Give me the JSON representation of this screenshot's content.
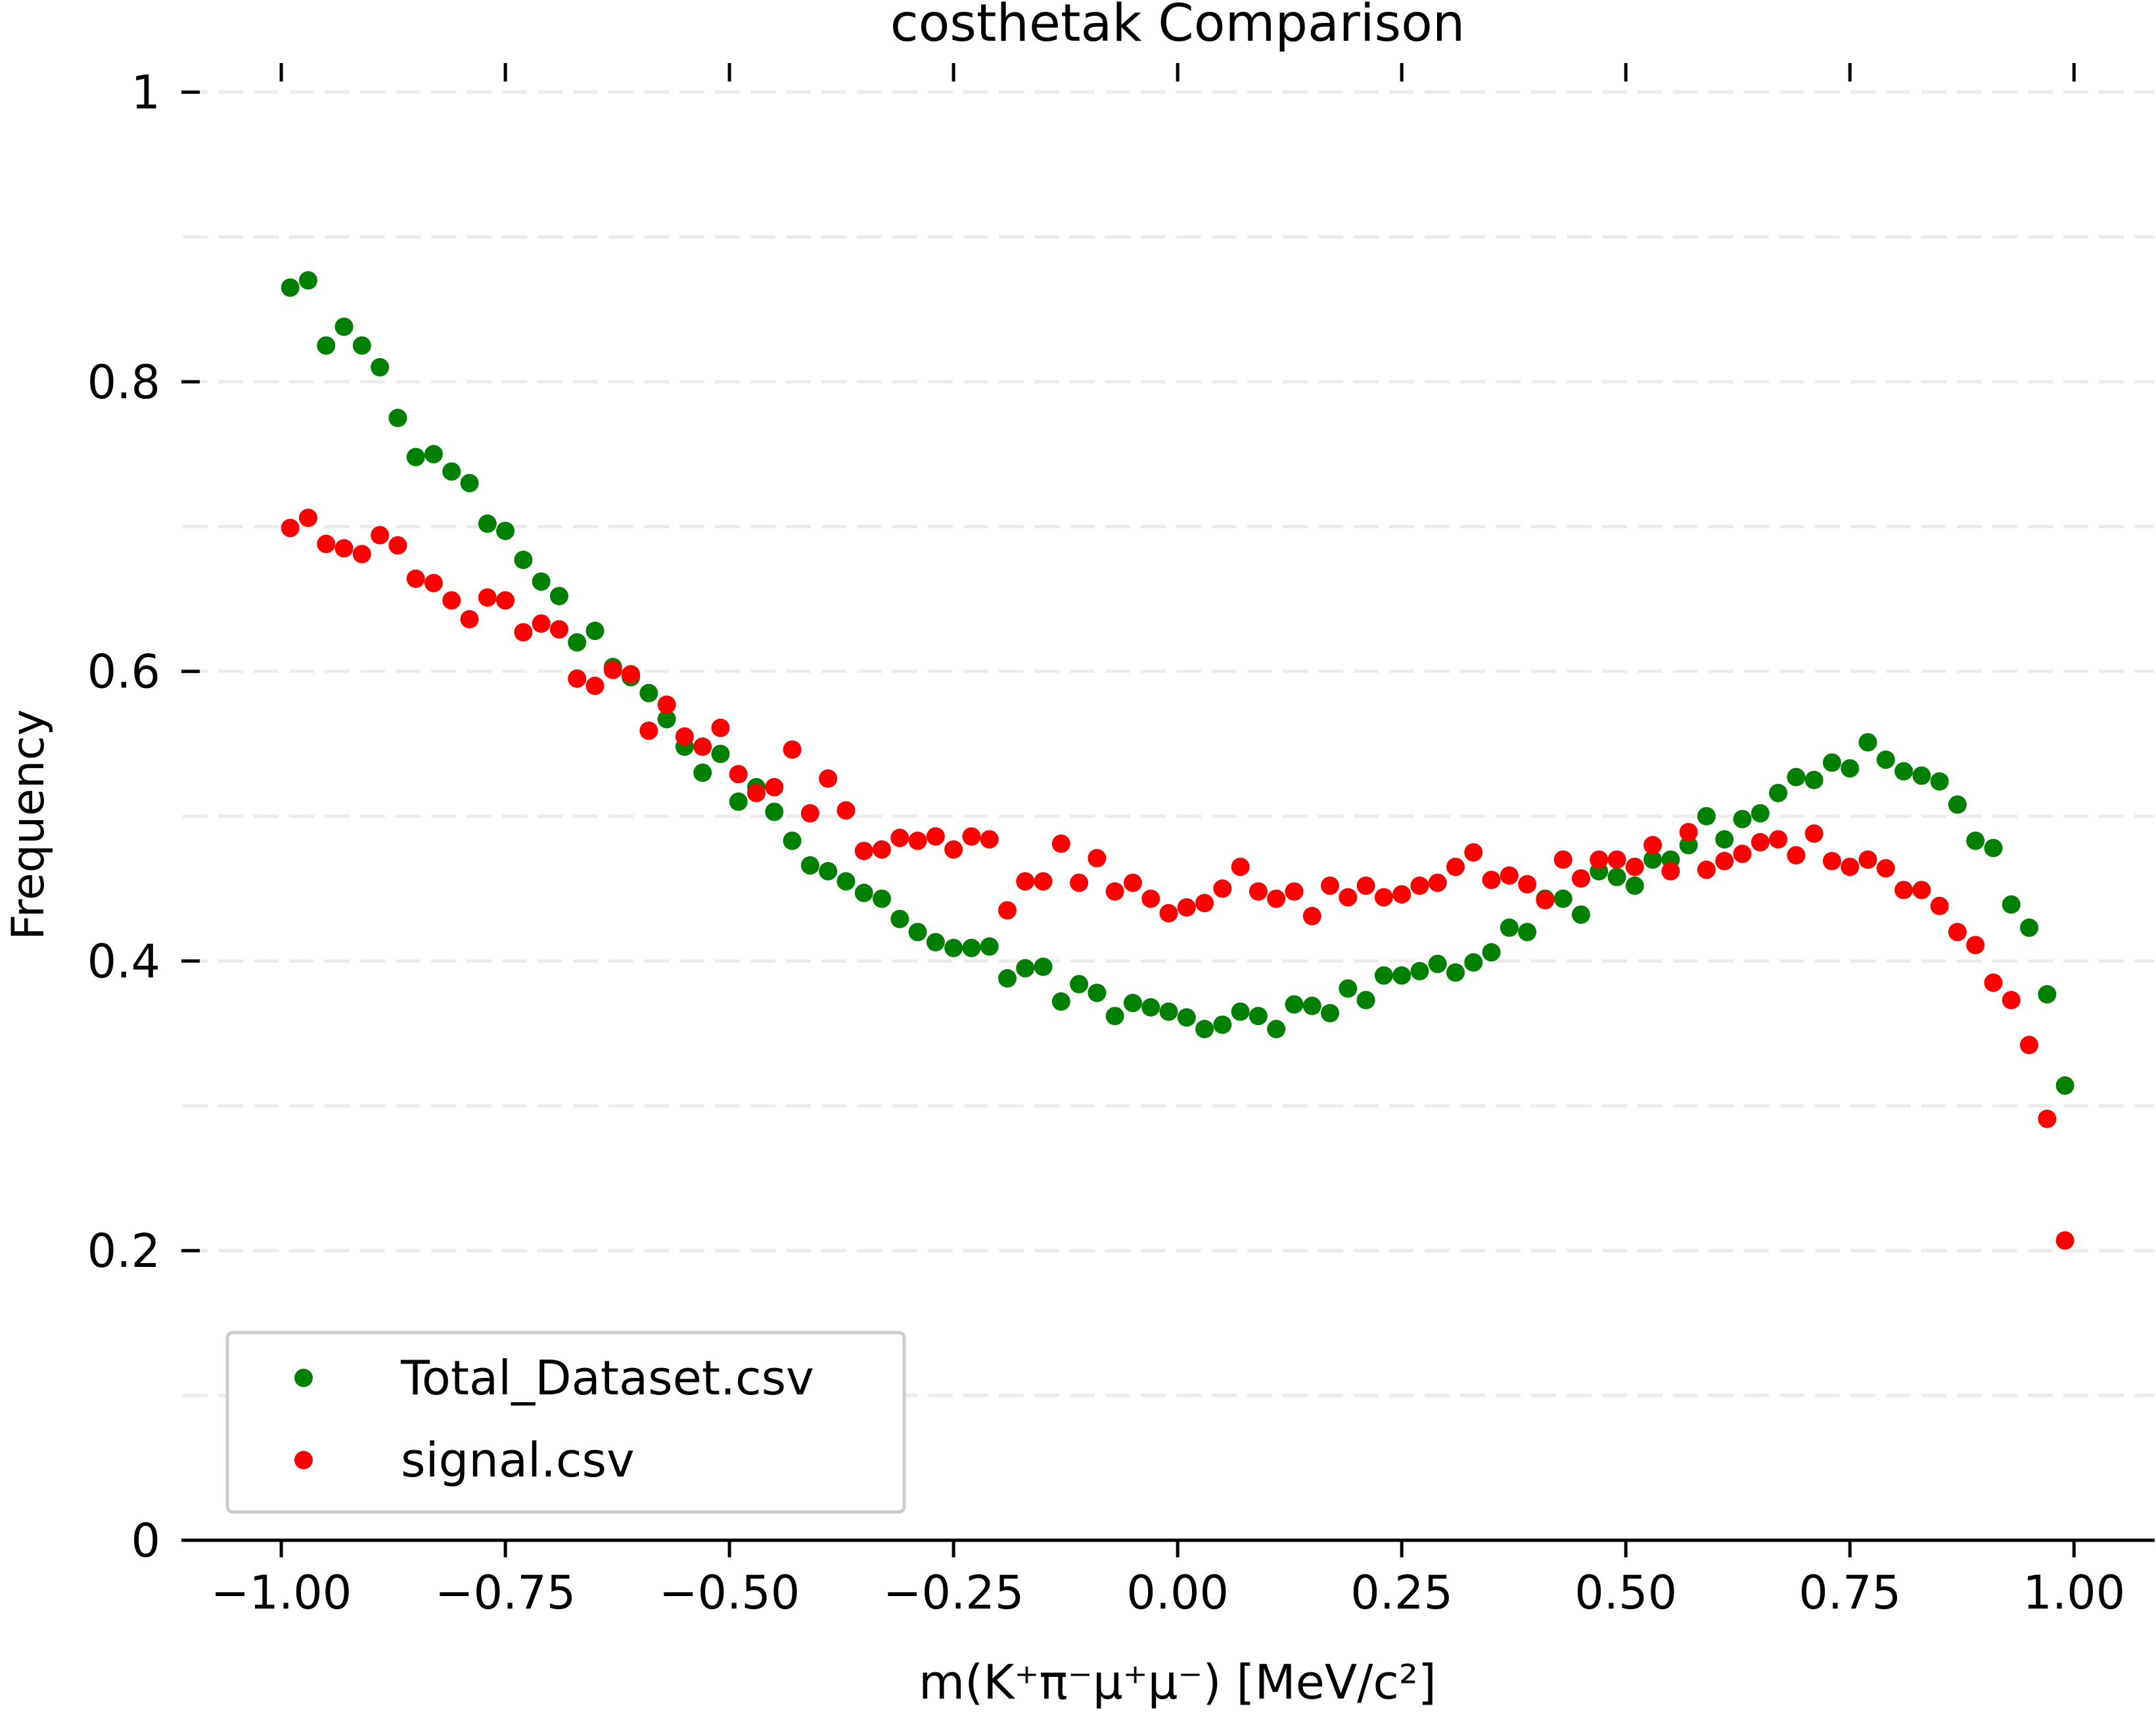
{
  "chart_data": {
    "type": "scatter",
    "title": "costhetak Comparison",
    "xlabel": "m(K⁺π⁻μ⁺μ⁻) [MeV/c²]",
    "ylabel": "Frequency",
    "xlim": [
      -1.11,
      1.09
    ],
    "ylim": [
      0,
      1.05
    ],
    "x_ticks": [
      -1.0,
      -0.75,
      -0.5,
      -0.25,
      0.0,
      0.25,
      0.5,
      0.75,
      1.0
    ],
    "x_tick_labels": [
      "−1.00",
      "−0.75",
      "−0.50",
      "−0.25",
      "0.00",
      "0.25",
      "0.50",
      "0.75",
      "1.00"
    ],
    "y_ticks": [
      0,
      0.2,
      0.4,
      0.6,
      0.8,
      1.0
    ],
    "y_tick_labels": [
      "0",
      "0.2",
      "0.4",
      "0.6",
      "0.8",
      "1"
    ],
    "grid": "horizontal dashed",
    "legend_position": "lower-left",
    "x": [
      -0.99,
      -0.97,
      -0.95,
      -0.93,
      -0.91,
      -0.89,
      -0.87,
      -0.85,
      -0.83,
      -0.81,
      -0.79,
      -0.77,
      -0.75,
      -0.73,
      -0.71,
      -0.69,
      -0.67,
      -0.65,
      -0.63,
      -0.61,
      -0.59,
      -0.57,
      -0.55,
      -0.53,
      -0.51,
      -0.49,
      -0.47,
      -0.45,
      -0.43,
      -0.41,
      -0.39,
      -0.37,
      -0.35,
      -0.33,
      -0.31,
      -0.29,
      -0.27,
      -0.25,
      -0.23,
      -0.21,
      -0.19,
      -0.17,
      -0.15,
      -0.13,
      -0.11,
      -0.09,
      -0.07,
      -0.05,
      -0.03,
      -0.01,
      0.01,
      0.03,
      0.05,
      0.07,
      0.09,
      0.11,
      0.13,
      0.15,
      0.17,
      0.19,
      0.21,
      0.23,
      0.25,
      0.27,
      0.29,
      0.31,
      0.33,
      0.35,
      0.37,
      0.39,
      0.41,
      0.43,
      0.45,
      0.47,
      0.49,
      0.51,
      0.53,
      0.55,
      0.57,
      0.59,
      0.61,
      0.63,
      0.65,
      0.67,
      0.69,
      0.71,
      0.73,
      0.75,
      0.77,
      0.79,
      0.81,
      0.83,
      0.85,
      0.87,
      0.89,
      0.91,
      0.93,
      0.95,
      0.97,
      0.99
    ],
    "series": [
      {
        "name": "Total_Dataset.csv",
        "color": "#008000",
        "values": [
          0.865,
          0.87,
          0.825,
          0.838,
          0.825,
          0.81,
          0.775,
          0.748,
          0.75,
          0.738,
          0.73,
          0.702,
          0.697,
          0.677,
          0.662,
          0.652,
          0.62,
          0.628,
          0.603,
          0.596,
          0.585,
          0.567,
          0.548,
          0.53,
          0.543,
          0.51,
          0.52,
          0.503,
          0.483,
          0.466,
          0.462,
          0.455,
          0.447,
          0.443,
          0.429,
          0.42,
          0.413,
          0.409,
          0.409,
          0.41,
          0.388,
          0.395,
          0.396,
          0.372,
          0.384,
          0.378,
          0.362,
          0.371,
          0.368,
          0.365,
          0.361,
          0.353,
          0.356,
          0.365,
          0.362,
          0.353,
          0.37,
          0.369,
          0.364,
          0.381,
          0.373,
          0.39,
          0.39,
          0.393,
          0.398,
          0.392,
          0.399,
          0.406,
          0.423,
          0.42,
          0.443,
          0.443,
          0.432,
          0.462,
          0.458,
          0.452,
          0.47,
          0.47,
          0.48,
          0.5,
          0.484,
          0.498,
          0.502,
          0.516,
          0.527,
          0.525,
          0.537,
          0.533,
          0.551,
          0.539,
          0.531,
          0.528,
          0.524,
          0.508,
          0.483,
          0.478,
          0.439,
          0.423,
          0.377,
          0.314
        ]
      },
      {
        "name": "signal.csv",
        "color": "#ff0000",
        "values": [
          0.699,
          0.706,
          0.688,
          0.685,
          0.681,
          0.694,
          0.687,
          0.664,
          0.661,
          0.649,
          0.636,
          0.651,
          0.649,
          0.627,
          0.633,
          0.629,
          0.595,
          0.59,
          0.601,
          0.598,
          0.559,
          0.577,
          0.555,
          0.548,
          0.561,
          0.529,
          0.516,
          0.52,
          0.546,
          0.502,
          0.526,
          0.504,
          0.476,
          0.477,
          0.485,
          0.483,
          0.486,
          0.477,
          0.486,
          0.484,
          0.435,
          0.455,
          0.455,
          0.481,
          0.454,
          0.471,
          0.448,
          0.454,
          0.443,
          0.433,
          0.437,
          0.44,
          0.45,
          0.465,
          0.448,
          0.443,
          0.448,
          0.431,
          0.452,
          0.444,
          0.452,
          0.444,
          0.446,
          0.452,
          0.454,
          0.465,
          0.475,
          0.456,
          0.459,
          0.453,
          0.442,
          0.47,
          0.457,
          0.47,
          0.47,
          0.465,
          0.48,
          0.462,
          0.489,
          0.463,
          0.469,
          0.474,
          0.482,
          0.484,
          0.473,
          0.488,
          0.469,
          0.465,
          0.47,
          0.464,
          0.449,
          0.449,
          0.438,
          0.42,
          0.411,
          0.385,
          0.373,
          0.342,
          0.291,
          0.207
        ]
      }
    ]
  }
}
